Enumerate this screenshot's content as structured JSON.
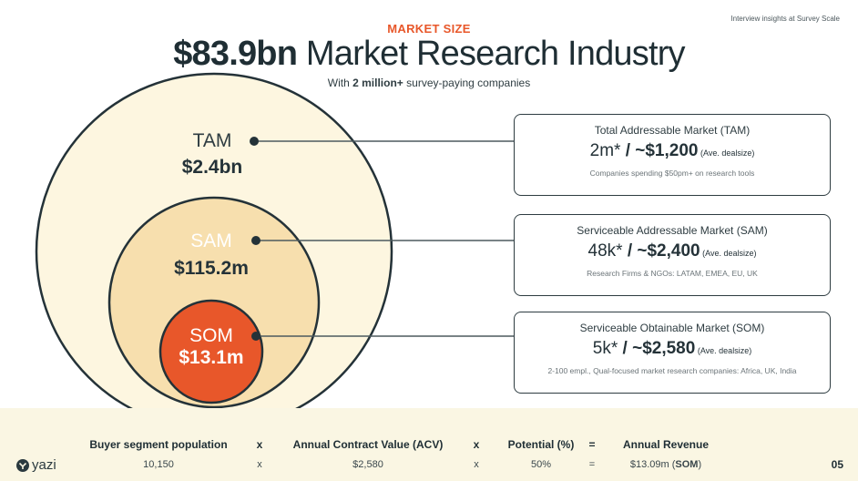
{
  "header": {
    "corner_note": "Interview insights at Survey Scale",
    "eyebrow": "MARKET SIZE",
    "title_bold": "$83.9bn",
    "title_rest": " Market Research Industry",
    "subtitle_pre": "With ",
    "subtitle_bold": "2 million+",
    "subtitle_post": " survey-paying companies"
  },
  "circles": {
    "tam": {
      "name": "TAM",
      "value": "$2.4bn",
      "fill": "#fdf6e0"
    },
    "sam": {
      "name": "SAM",
      "value": "$115.2m",
      "fill": "#f7dfae"
    },
    "som": {
      "name": "SOM",
      "value": "$13.1m",
      "fill": "#e8572a"
    }
  },
  "cards": [
    {
      "title": "Total Addressable Market (TAM)",
      "count": "2m*",
      "sep": " / ",
      "price": "~$1,200",
      "note": " (Ave. dealsize)",
      "desc": "Companies spending $50pm+ on research tools"
    },
    {
      "title": "Serviceable Addressable Market (SAM)",
      "count": "48k*",
      "sep": " / ",
      "price": "~$2,400",
      "note": " (Ave. dealsize)",
      "desc": "Research Firms & NGOs: LATAM, EMEA, EU, UK"
    },
    {
      "title": "Serviceable Obtainable Market (SOM)",
      "count": "5k*",
      "sep": " / ",
      "price": "~$2,580",
      "note": " (Ave. dealsize)",
      "desc": "2-100 empl., Qual-focused market research companies: Africa, UK, India"
    }
  ],
  "footer": {
    "logo_text": "yazi",
    "page_number": "05",
    "columns": [
      {
        "head": "Buyer segment population",
        "value": "10,150"
      },
      {
        "head": "x",
        "value": "x"
      },
      {
        "head": "Annual Contract Value (ACV)",
        "value": "$2,580"
      },
      {
        "head": "x",
        "value": "x"
      },
      {
        "head": "Potential (%)",
        "value": "50%"
      },
      {
        "head": "=",
        "value": "="
      },
      {
        "head": "Annual Revenue",
        "value_pre": "$13.09m (",
        "value_bold": "SOM",
        "value_post": ")"
      }
    ]
  },
  "colors": {
    "accent": "#e8572a",
    "dark": "#243238",
    "footer_bg": "#faf6e3"
  }
}
